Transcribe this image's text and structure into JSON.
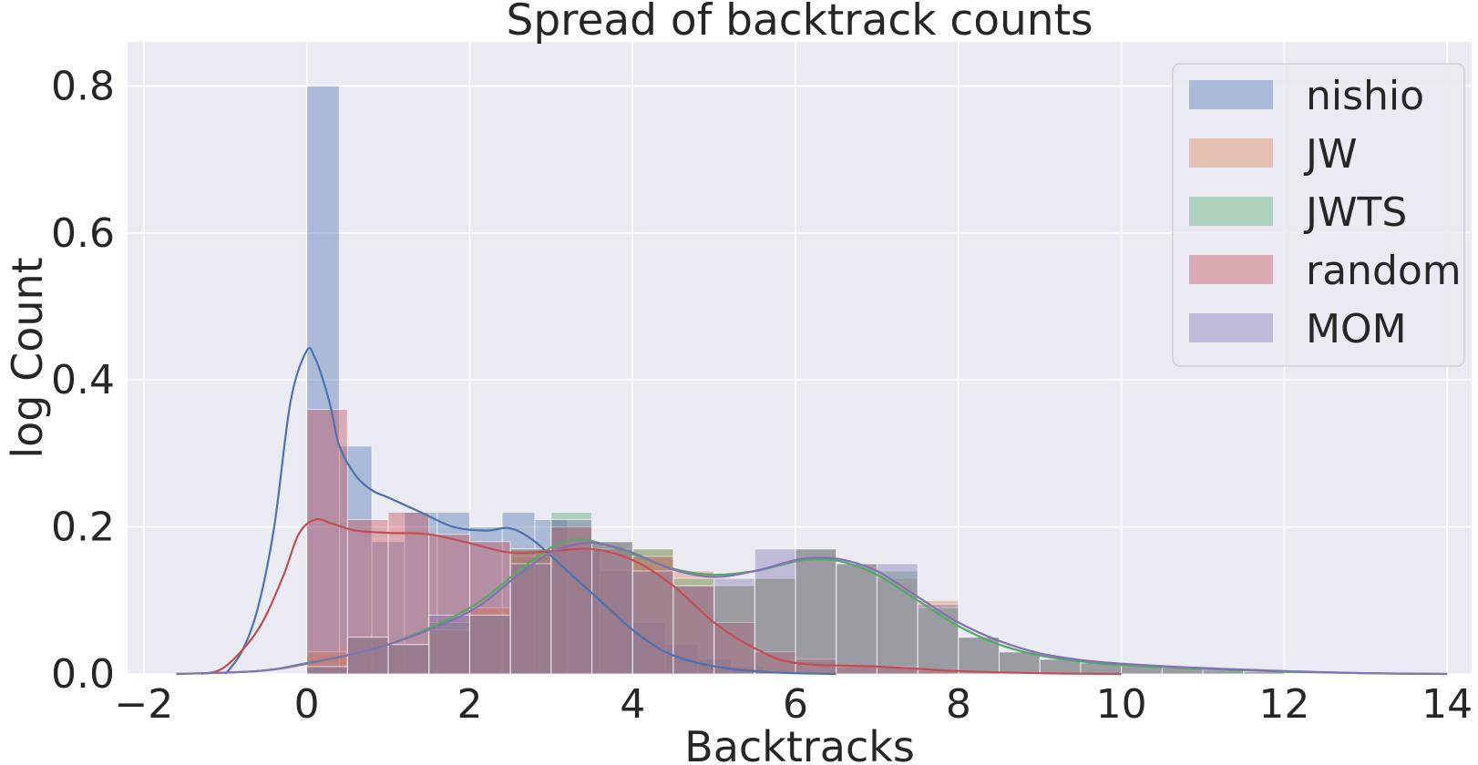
{
  "chart_data": {
    "type": "histogram",
    "title": "Spread of backtrack counts",
    "xlabel": "Backtracks",
    "ylabel": "log Count",
    "xlim": [
      -2.2,
      14.3
    ],
    "ylim": [
      0,
      0.86
    ],
    "xticks": [
      -2,
      0,
      2,
      4,
      6,
      8,
      10,
      12,
      14
    ],
    "xtick_labels": [
      "−2",
      "0",
      "2",
      "4",
      "6",
      "8",
      "10",
      "12",
      "14"
    ],
    "yticks": [
      0.0,
      0.2,
      0.4,
      0.6,
      0.8
    ],
    "ytick_labels": [
      "0.0",
      "0.2",
      "0.4",
      "0.6",
      "0.8"
    ],
    "grid": true,
    "legend_position": "top-right",
    "series": [
      {
        "name": "nishio",
        "color": "#4c72b0",
        "bins": [
          [
            0.0,
            0.4,
            0.8
          ],
          [
            0.4,
            0.8,
            0.31
          ],
          [
            0.8,
            1.2,
            0.18
          ],
          [
            1.2,
            1.6,
            0.22
          ],
          [
            1.6,
            2.0,
            0.22
          ],
          [
            2.0,
            2.4,
            0.2
          ],
          [
            2.4,
            2.8,
            0.22
          ],
          [
            2.8,
            3.2,
            0.21
          ],
          [
            3.2,
            3.6,
            0.17
          ],
          [
            3.6,
            4.0,
            0.14
          ],
          [
            4.0,
            4.4,
            0.07
          ],
          [
            4.4,
            4.8,
            0.04
          ],
          [
            4.8,
            5.2,
            0.02
          ],
          [
            5.2,
            5.6,
            0.01
          ]
        ],
        "kde": [
          [
            -1.0,
            0.0
          ],
          [
            -0.8,
            0.03
          ],
          [
            -0.6,
            0.09
          ],
          [
            -0.4,
            0.2
          ],
          [
            -0.2,
            0.37
          ],
          [
            0.0,
            0.44
          ],
          [
            0.1,
            0.43
          ],
          [
            0.2,
            0.4
          ],
          [
            0.3,
            0.36
          ],
          [
            0.4,
            0.31
          ],
          [
            0.6,
            0.27
          ],
          [
            0.8,
            0.25
          ],
          [
            1.0,
            0.24
          ],
          [
            1.4,
            0.22
          ],
          [
            1.8,
            0.2
          ],
          [
            2.2,
            0.195
          ],
          [
            2.5,
            0.198
          ],
          [
            2.8,
            0.18
          ],
          [
            3.2,
            0.14
          ],
          [
            3.6,
            0.1
          ],
          [
            4.0,
            0.06
          ],
          [
            4.4,
            0.03
          ],
          [
            4.8,
            0.015
          ],
          [
            5.2,
            0.007
          ],
          [
            5.6,
            0.003
          ],
          [
            6.0,
            0.001
          ],
          [
            6.5,
            0.0
          ]
        ]
      },
      {
        "name": "JW",
        "color": "#dd8452",
        "bins": [
          [
            0.0,
            0.5,
            0.03
          ],
          [
            0.5,
            1.0,
            0.05
          ],
          [
            1.0,
            1.5,
            0.04
          ],
          [
            1.5,
            2.0,
            0.06
          ],
          [
            2.0,
            2.5,
            0.09
          ],
          [
            2.5,
            3.0,
            0.16
          ],
          [
            3.0,
            3.5,
            0.2
          ],
          [
            3.5,
            4.0,
            0.18
          ],
          [
            4.0,
            4.5,
            0.17
          ],
          [
            4.5,
            5.0,
            0.14
          ],
          [
            5.0,
            5.5,
            0.12
          ],
          [
            5.5,
            6.0,
            0.13
          ],
          [
            6.0,
            6.5,
            0.17
          ],
          [
            6.5,
            7.0,
            0.15
          ],
          [
            7.0,
            7.5,
            0.13
          ],
          [
            7.5,
            8.0,
            0.1
          ],
          [
            8.0,
            8.5,
            0.05
          ],
          [
            8.5,
            9.0,
            0.03
          ],
          [
            9.0,
            9.5,
            0.02
          ],
          [
            9.5,
            10.0,
            0.015
          ],
          [
            10.0,
            10.5,
            0.01
          ],
          [
            10.5,
            11.0,
            0.008
          ],
          [
            11.0,
            11.5,
            0.005
          ],
          [
            11.5,
            12.0,
            0.003
          ]
        ]
      },
      {
        "name": "JWTS",
        "color": "#55a868",
        "bins": [
          [
            0.0,
            0.5,
            0.01
          ],
          [
            0.5,
            1.0,
            0.05
          ],
          [
            1.0,
            1.5,
            0.04
          ],
          [
            1.5,
            2.0,
            0.07
          ],
          [
            2.0,
            2.5,
            0.08
          ],
          [
            2.5,
            3.0,
            0.17
          ],
          [
            3.0,
            3.5,
            0.22
          ],
          [
            3.5,
            4.0,
            0.18
          ],
          [
            4.0,
            4.5,
            0.17
          ],
          [
            4.5,
            5.0,
            0.13
          ],
          [
            5.0,
            5.5,
            0.12
          ],
          [
            5.5,
            6.0,
            0.13
          ],
          [
            6.0,
            6.5,
            0.17
          ],
          [
            6.5,
            7.0,
            0.15
          ],
          [
            7.0,
            7.5,
            0.14
          ],
          [
            7.5,
            8.0,
            0.09
          ],
          [
            8.0,
            8.5,
            0.05
          ],
          [
            8.5,
            9.0,
            0.03
          ],
          [
            9.0,
            9.5,
            0.02
          ],
          [
            9.5,
            10.0,
            0.015
          ],
          [
            10.0,
            10.5,
            0.012
          ],
          [
            10.5,
            11.0,
            0.008
          ],
          [
            11.0,
            11.5,
            0.005
          ],
          [
            11.5,
            12.0,
            0.003
          ]
        ],
        "kde": [
          [
            -1.6,
            0.0
          ],
          [
            -0.6,
            0.004
          ],
          [
            0.0,
            0.015
          ],
          [
            1.0,
            0.04
          ],
          [
            2.0,
            0.09
          ],
          [
            2.6,
            0.14
          ],
          [
            3.0,
            0.172
          ],
          [
            3.3,
            0.183
          ],
          [
            3.6,
            0.178
          ],
          [
            4.0,
            0.163
          ],
          [
            4.5,
            0.143
          ],
          [
            5.0,
            0.135
          ],
          [
            5.5,
            0.14
          ],
          [
            6.0,
            0.153
          ],
          [
            6.3,
            0.156
          ],
          [
            6.6,
            0.152
          ],
          [
            7.0,
            0.135
          ],
          [
            7.5,
            0.1
          ],
          [
            8.0,
            0.065
          ],
          [
            8.5,
            0.04
          ],
          [
            9.0,
            0.025
          ],
          [
            9.5,
            0.017
          ],
          [
            10.0,
            0.012
          ],
          [
            11.0,
            0.007
          ],
          [
            12.0,
            0.003
          ],
          [
            13.0,
            0.001
          ],
          [
            14.0,
            0.0
          ]
        ]
      },
      {
        "name": "random",
        "color": "#c44e52",
        "bins": [
          [
            0.0,
            0.5,
            0.36
          ],
          [
            0.5,
            1.0,
            0.21
          ],
          [
            1.0,
            1.5,
            0.22
          ],
          [
            1.5,
            2.0,
            0.19
          ],
          [
            2.0,
            2.5,
            0.18
          ],
          [
            2.5,
            3.0,
            0.17
          ],
          [
            3.0,
            3.5,
            0.2
          ],
          [
            3.5,
            4.0,
            0.17
          ],
          [
            4.0,
            4.5,
            0.16
          ],
          [
            4.5,
            5.0,
            0.12
          ],
          [
            5.0,
            5.5,
            0.07
          ],
          [
            5.5,
            6.0,
            0.03
          ],
          [
            6.0,
            6.5,
            0.02
          ],
          [
            6.5,
            7.0,
            0.01
          ],
          [
            7.0,
            7.5,
            0.01
          ],
          [
            7.5,
            8.0,
            0.005
          ]
        ],
        "kde": [
          [
            -1.3,
            0.0
          ],
          [
            -1.0,
            0.01
          ],
          [
            -0.6,
            0.06
          ],
          [
            -0.3,
            0.13
          ],
          [
            -0.1,
            0.19
          ],
          [
            0.1,
            0.21
          ],
          [
            0.3,
            0.205
          ],
          [
            0.6,
            0.195
          ],
          [
            1.0,
            0.192
          ],
          [
            1.5,
            0.19
          ],
          [
            2.0,
            0.178
          ],
          [
            2.5,
            0.165
          ],
          [
            3.0,
            0.167
          ],
          [
            3.5,
            0.17
          ],
          [
            4.0,
            0.155
          ],
          [
            4.5,
            0.12
          ],
          [
            5.0,
            0.07
          ],
          [
            5.5,
            0.035
          ],
          [
            6.0,
            0.015
          ],
          [
            7.0,
            0.01
          ],
          [
            8.0,
            0.004
          ],
          [
            9.0,
            0.001
          ],
          [
            10.0,
            0.0
          ]
        ]
      },
      {
        "name": "MOM",
        "color": "#8172b3",
        "bins": [
          [
            0.0,
            0.5,
            0.01
          ],
          [
            0.5,
            1.0,
            0.05
          ],
          [
            1.0,
            1.5,
            0.04
          ],
          [
            1.5,
            2.0,
            0.08
          ],
          [
            2.0,
            2.5,
            0.08
          ],
          [
            2.5,
            3.0,
            0.15
          ],
          [
            3.0,
            3.5,
            0.21
          ],
          [
            3.5,
            4.0,
            0.18
          ],
          [
            4.0,
            4.5,
            0.14
          ],
          [
            4.5,
            5.0,
            0.12
          ],
          [
            5.0,
            5.5,
            0.13
          ],
          [
            5.5,
            6.0,
            0.17
          ],
          [
            6.0,
            6.5,
            0.17
          ],
          [
            6.5,
            7.0,
            0.15
          ],
          [
            7.0,
            7.5,
            0.15
          ],
          [
            7.5,
            8.0,
            0.095
          ],
          [
            8.0,
            8.5,
            0.05
          ],
          [
            8.5,
            9.0,
            0.03
          ],
          [
            9.0,
            9.5,
            0.02
          ],
          [
            9.5,
            10.0,
            0.015
          ],
          [
            10.0,
            10.5,
            0.012
          ],
          [
            10.5,
            11.0,
            0.008
          ],
          [
            11.0,
            11.5,
            0.006
          ],
          [
            11.5,
            12.0,
            0.003
          ]
        ],
        "kde": [
          [
            -1.6,
            0.0
          ],
          [
            -0.6,
            0.004
          ],
          [
            0.0,
            0.014
          ],
          [
            1.0,
            0.04
          ],
          [
            2.0,
            0.085
          ],
          [
            2.6,
            0.135
          ],
          [
            3.0,
            0.165
          ],
          [
            3.4,
            0.178
          ],
          [
            3.7,
            0.175
          ],
          [
            4.0,
            0.165
          ],
          [
            4.5,
            0.142
          ],
          [
            5.0,
            0.132
          ],
          [
            5.5,
            0.14
          ],
          [
            6.0,
            0.155
          ],
          [
            6.3,
            0.158
          ],
          [
            6.6,
            0.155
          ],
          [
            7.0,
            0.14
          ],
          [
            7.5,
            0.105
          ],
          [
            8.0,
            0.07
          ],
          [
            8.5,
            0.045
          ],
          [
            9.0,
            0.028
          ],
          [
            9.5,
            0.019
          ],
          [
            10.0,
            0.014
          ],
          [
            11.0,
            0.008
          ],
          [
            12.0,
            0.004
          ],
          [
            13.0,
            0.001
          ],
          [
            14.0,
            0.0
          ]
        ]
      }
    ]
  }
}
